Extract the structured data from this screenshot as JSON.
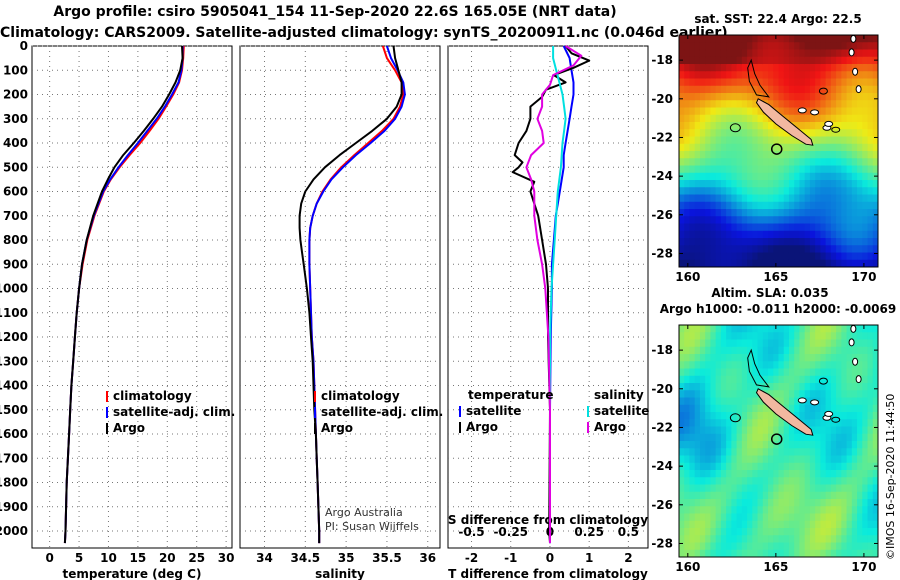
{
  "title_line1": "Argo profile: csiro 5905041_154 11-Sep-2020 22.6S 165.05E (NRT data)",
  "title_line2": "Climatology: CARS2009. Satellite-adjusted climatology: synTS_20200911.nc (0.046d earlier)",
  "colors": {
    "climatology": "#ff0000",
    "satellite": "#0000ff",
    "argo": "#000000",
    "sat_salinity": "#00e0e0",
    "argo_salinity": "#e000e0"
  },
  "chart_data": [
    {
      "type": "line",
      "name": "temperature",
      "xlabel": "temperature (deg C)",
      "xlim": [
        -3,
        31
      ],
      "ylim": [
        0,
        2070
      ],
      "xticks": [
        0,
        5,
        10,
        15,
        20,
        25,
        30
      ],
      "yticks": [
        0,
        100,
        200,
        300,
        400,
        500,
        600,
        700,
        800,
        900,
        1000,
        1100,
        1200,
        1300,
        1400,
        1500,
        1600,
        1700,
        1800,
        1900,
        2000
      ],
      "legend": [
        "climatology",
        "satellite-adj. clim.",
        "Argo"
      ],
      "series": [
        {
          "name": "climatology",
          "depth": [
            0,
            50,
            100,
            150,
            200,
            250,
            300,
            350,
            400,
            450,
            500,
            550,
            600,
            700,
            800,
            900,
            1000,
            1100,
            1200,
            1300,
            1400,
            1500,
            1600,
            1700,
            1800,
            1900,
            2000,
            2050
          ],
          "values": [
            22.8,
            22.7,
            22.5,
            22.0,
            21.0,
            19.8,
            18.5,
            17.0,
            15.4,
            13.6,
            11.9,
            10.4,
            9.2,
            7.6,
            6.4,
            5.6,
            5.0,
            4.6,
            4.3,
            4.0,
            3.7,
            3.5,
            3.3,
            3.1,
            2.9,
            2.8,
            2.7,
            2.6
          ]
        },
        {
          "name": "satellite-adj. clim.",
          "depth": [
            0,
            50,
            100,
            150,
            200,
            250,
            300,
            350,
            400,
            450,
            500,
            550,
            600,
            700,
            800,
            900,
            1000,
            1100,
            1200,
            1300,
            1400,
            1500,
            1600,
            1700,
            1800,
            1900,
            2000,
            2050
          ],
          "values": [
            22.6,
            22.6,
            22.4,
            21.9,
            20.8,
            19.6,
            18.2,
            16.6,
            15.0,
            13.3,
            11.7,
            10.3,
            9.1,
            7.5,
            6.3,
            5.5,
            5.0,
            4.6,
            4.3,
            4.0,
            3.7,
            3.5,
            3.3,
            3.1,
            2.9,
            2.8,
            2.7,
            2.6
          ]
        },
        {
          "name": "Argo",
          "depth": [
            0,
            50,
            100,
            150,
            200,
            250,
            300,
            350,
            400,
            450,
            500,
            550,
            600,
            700,
            800,
            900,
            1000,
            1100,
            1200,
            1300,
            1400,
            1500,
            1600,
            1700,
            1800,
            1900,
            2000,
            2050
          ],
          "values": [
            22.5,
            22.6,
            22.2,
            21.4,
            20.3,
            19.1,
            17.6,
            16.0,
            14.3,
            12.5,
            11.0,
            9.9,
            8.9,
            7.4,
            6.3,
            5.5,
            5.0,
            4.6,
            4.3,
            4.0,
            3.7,
            3.5,
            3.3,
            3.1,
            2.9,
            2.8,
            2.7,
            2.6
          ]
        }
      ]
    },
    {
      "type": "line",
      "name": "salinity",
      "xlabel": "salinity",
      "xlim": [
        33.7,
        36.15
      ],
      "ylim": [
        0,
        2070
      ],
      "xticks": [
        34,
        34.5,
        35,
        35.5,
        36
      ],
      "legend": [
        "climatology",
        "satellite-adj. clim.",
        "Argo"
      ],
      "series": [
        {
          "name": "climatology",
          "depth": [
            0,
            50,
            100,
            150,
            200,
            250,
            300,
            350,
            400,
            450,
            500,
            550,
            600,
            650,
            700,
            750,
            800,
            850,
            900,
            1000,
            1100,
            1200,
            1300,
            1400,
            1500,
            1600,
            1700,
            1800,
            1900,
            2000,
            2050
          ],
          "values": [
            35.45,
            35.5,
            35.6,
            35.68,
            35.7,
            35.66,
            35.58,
            35.44,
            35.27,
            35.1,
            34.94,
            34.81,
            34.71,
            34.64,
            34.59,
            34.56,
            34.55,
            34.55,
            34.55,
            34.56,
            34.57,
            34.58,
            34.6,
            34.61,
            34.62,
            34.63,
            34.64,
            34.65,
            34.66,
            34.67,
            34.67
          ]
        },
        {
          "name": "satellite-adj. clim.",
          "depth": [
            0,
            50,
            100,
            150,
            200,
            250,
            300,
            350,
            400,
            450,
            500,
            550,
            600,
            650,
            700,
            750,
            800,
            850,
            900,
            1000,
            1100,
            1200,
            1300,
            1400,
            1500,
            1600,
            1700,
            1800,
            1900,
            2000,
            2050
          ],
          "values": [
            35.5,
            35.55,
            35.63,
            35.7,
            35.72,
            35.68,
            35.6,
            35.47,
            35.3,
            35.12,
            34.96,
            34.82,
            34.72,
            34.64,
            34.59,
            34.56,
            34.55,
            34.55,
            34.55,
            34.56,
            34.57,
            34.58,
            34.6,
            34.61,
            34.62,
            34.63,
            34.64,
            34.65,
            34.66,
            34.67,
            34.67
          ]
        },
        {
          "name": "Argo",
          "depth": [
            0,
            50,
            100,
            150,
            200,
            250,
            300,
            350,
            400,
            450,
            500,
            550,
            600,
            650,
            700,
            750,
            800,
            850,
            900,
            1000,
            1100,
            1200,
            1300,
            1400,
            1500,
            1600,
            1700,
            1800,
            1900,
            2000,
            2050
          ],
          "values": [
            35.58,
            35.6,
            35.64,
            35.68,
            35.68,
            35.62,
            35.5,
            35.32,
            35.12,
            34.92,
            34.74,
            34.6,
            34.5,
            34.45,
            34.43,
            34.43,
            34.44,
            34.46,
            34.48,
            34.52,
            34.55,
            34.57,
            34.59,
            34.6,
            34.61,
            34.63,
            34.64,
            34.65,
            34.66,
            34.67,
            34.67
          ]
        }
      ]
    },
    {
      "type": "line",
      "name": "difference",
      "xlabel": "T difference from climatology",
      "xlabel2": "S difference from climatology",
      "xlim": [
        -2.6,
        2.5
      ],
      "ylim": [
        0,
        2070
      ],
      "xticks": [
        -2,
        -1,
        0,
        1,
        2
      ],
      "xticks_s": [
        -0.5,
        -0.25,
        0,
        0.25,
        0.5
      ],
      "xtick_labels_s": [
        "-0.5",
        "-0.25",
        "0",
        "0.25",
        "0.5"
      ],
      "legend_left_title": "temperature",
      "legend_right_title": "salinity",
      "legend": [
        "satellite",
        "Argo",
        "satellite",
        "Argo"
      ],
      "series": [
        {
          "name": "T satellite",
          "depth": [
            0,
            50,
            100,
            150,
            200,
            250,
            300,
            350,
            400,
            450,
            500,
            600,
            700,
            800,
            900,
            1000,
            1200,
            1500,
            2000,
            2050
          ],
          "values": [
            0.35,
            0.5,
            0.55,
            0.6,
            0.6,
            0.55,
            0.5,
            0.45,
            0.4,
            0.35,
            0.35,
            0.25,
            0.15,
            0.1,
            0.05,
            0.05,
            0.02,
            0.0,
            0.0,
            0.0
          ]
        },
        {
          "name": "T Argo",
          "depth": [
            0,
            30,
            60,
            90,
            120,
            150,
            180,
            210,
            250,
            300,
            350,
            400,
            450,
            480,
            500,
            520,
            560,
            600,
            700,
            800,
            900,
            1000,
            1200,
            1500,
            2000,
            2050
          ],
          "values": [
            0.4,
            0.55,
            1.0,
            0.6,
            0.1,
            0.4,
            -0.1,
            -0.2,
            -0.5,
            -0.5,
            -0.6,
            -0.8,
            -0.9,
            -0.7,
            -0.8,
            -0.95,
            -0.4,
            -0.5,
            -0.3,
            -0.2,
            -0.1,
            -0.05,
            -0.05,
            0.0,
            -0.02,
            0.0
          ]
        },
        {
          "name": "S satellite",
          "depth": [
            0,
            50,
            100,
            150,
            200,
            250,
            300,
            350,
            400,
            500,
            600,
            700,
            800,
            900,
            1000,
            1200,
            1500,
            2000,
            2050
          ],
          "values": [
            0.02,
            0.02,
            0.04,
            0.06,
            0.08,
            0.09,
            0.1,
            0.09,
            0.08,
            0.07,
            0.05,
            0.04,
            0.03,
            0.02,
            0.01,
            0.0,
            0.0,
            0.0,
            0.0
          ]
        },
        {
          "name": "S Argo",
          "depth": [
            0,
            40,
            80,
            120,
            160,
            200,
            250,
            300,
            350,
            400,
            450,
            500,
            550,
            600,
            700,
            800,
            900,
            1000,
            1200,
            1500,
            2000,
            2050
          ],
          "values": [
            0.1,
            0.2,
            0.15,
            0.02,
            0.0,
            -0.05,
            -0.05,
            -0.08,
            -0.05,
            -0.04,
            -0.12,
            -0.15,
            -0.12,
            -0.1,
            -0.1,
            -0.08,
            -0.05,
            -0.03,
            -0.01,
            0.0,
            0.0,
            0.0
          ]
        }
      ]
    },
    {
      "type": "heatmap",
      "name": "sst_map",
      "title": "sat. SST: 22.4 Argo: 22.5",
      "xticks": [
        160,
        165,
        170
      ],
      "yticks": [
        -18,
        -20,
        -22,
        -24,
        -26,
        -28
      ],
      "ytick_labels": [
        "-18",
        "-20",
        "-22",
        "-24",
        "-26",
        "-28"
      ],
      "xlim": [
        159.5,
        170.8
      ],
      "ylim": [
        -28.7,
        -16.7
      ],
      "argo_position": [
        165.05,
        -22.6
      ]
    },
    {
      "type": "heatmap",
      "name": "sla_map",
      "title": "Altim. SLA: 0.035",
      "subtitle": "Argo h1000: -0.011 h2000: -0.0069",
      "xticks": [
        160,
        165,
        170
      ],
      "yticks": [
        -18,
        -20,
        -22,
        -24,
        -26,
        -28
      ],
      "ytick_labels": [
        "-18",
        "-20",
        "-22",
        "-24",
        "-26",
        "-28"
      ],
      "xlim": [
        159.5,
        170.8
      ],
      "ylim": [
        -28.7,
        -16.7
      ],
      "argo_position": [
        165.05,
        -22.6
      ]
    }
  ],
  "notes": {
    "argo_australia": "Argo Australia",
    "pi": "PI: Susan Wijffels"
  },
  "credit": "©IMOS 16-Sep-2020 11:44:50"
}
